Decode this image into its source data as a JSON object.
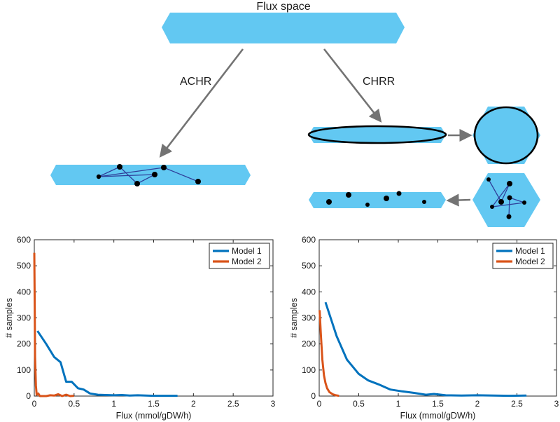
{
  "diagram": {
    "title": "Flux space",
    "methods": {
      "left": "ACHR",
      "right": "CHRR"
    },
    "colors": {
      "hexagon_fill": "#62c8f2",
      "arrow": "#737373",
      "point": "#000000",
      "path": "#2f3f9a"
    }
  },
  "chart_data": [
    {
      "type": "line",
      "title": "",
      "xlabel": "Flux (mmol/gDW/h)",
      "ylabel": "# samples",
      "xlim": [
        0,
        3
      ],
      "ylim": [
        0,
        600
      ],
      "xticks": [
        "0",
        "0.5",
        "1",
        "1.5",
        "2",
        "2.5",
        "3"
      ],
      "yticks": [
        "0",
        "100",
        "200",
        "300",
        "400",
        "500",
        "600"
      ],
      "legend_position": "top-right",
      "series": [
        {
          "name": "Model 1",
          "color": "#0072bd",
          "x": [
            0.04,
            0.15,
            0.25,
            0.33,
            0.4,
            0.47,
            0.55,
            0.62,
            0.7,
            0.8,
            0.9,
            1.0,
            1.1,
            1.2,
            1.3,
            1.4,
            1.5,
            1.6,
            1.7,
            1.8
          ],
          "y": [
            250,
            200,
            150,
            130,
            55,
            55,
            30,
            25,
            10,
            5,
            4,
            3,
            4,
            2,
            3,
            2,
            1,
            1,
            1,
            1
          ]
        },
        {
          "name": "Model 2",
          "color": "#d95319",
          "x": [
            0.0,
            0.005,
            0.01,
            0.02,
            0.03,
            0.05,
            0.07,
            0.1,
            0.15,
            0.2,
            0.25,
            0.3,
            0.35,
            0.4,
            0.45,
            0.5
          ],
          "y": [
            550,
            350,
            150,
            40,
            5,
            10,
            0,
            0,
            0,
            3,
            2,
            7,
            0,
            5,
            0,
            1
          ]
        }
      ]
    },
    {
      "type": "line",
      "title": "",
      "xlabel": "Flux (mmol/gDW/h)",
      "ylabel": "# samples",
      "xlim": [
        0,
        3
      ],
      "ylim": [
        0,
        600
      ],
      "xticks": [
        "0",
        "0.5",
        "1",
        "1.5",
        "2",
        "2.5",
        "3"
      ],
      "yticks": [
        "0",
        "100",
        "200",
        "300",
        "400",
        "500",
        "600"
      ],
      "legend_position": "top-right",
      "series": [
        {
          "name": "Model 1",
          "color": "#0072bd",
          "x": [
            0.08,
            0.22,
            0.35,
            0.5,
            0.62,
            0.75,
            0.9,
            1.05,
            1.2,
            1.35,
            1.45,
            1.6,
            1.8,
            2.0,
            2.2,
            2.4,
            2.62
          ],
          "y": [
            360,
            230,
            140,
            85,
            60,
            45,
            25,
            18,
            12,
            5,
            8,
            3,
            2,
            3,
            2,
            1,
            2
          ]
        },
        {
          "name": "Model 2",
          "color": "#d95319",
          "x": [
            0.005,
            0.02,
            0.04,
            0.06,
            0.08,
            0.1,
            0.13,
            0.17,
            0.21,
            0.25
          ],
          "y": [
            330,
            240,
            140,
            80,
            50,
            30,
            15,
            7,
            3,
            1
          ]
        }
      ]
    }
  ]
}
